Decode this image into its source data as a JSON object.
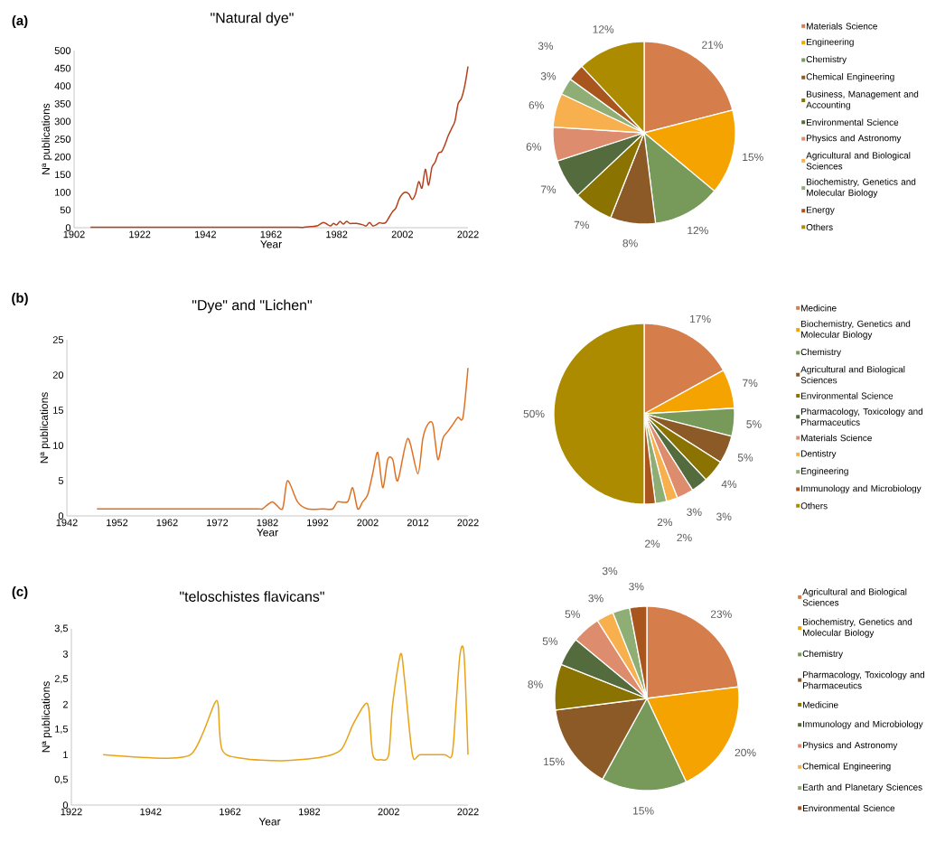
{
  "chart_data": [
    {
      "type": "line",
      "title": "\"Natural dye\"",
      "xlabel": "Year",
      "ylabel": "Nª publications",
      "annotations": [
        "(a)"
      ],
      "color": "#b5401b",
      "x": [
        1907,
        1920,
        1940,
        1955,
        1970,
        1972,
        1974,
        1976,
        1978,
        1980,
        1981,
        1982,
        1983,
        1984,
        1985,
        1986,
        1987,
        1988,
        1990,
        1991,
        1992,
        1993,
        1994,
        1995,
        1996,
        1997,
        1998,
        1999,
        2000,
        2001,
        2002,
        2003,
        2004,
        2005,
        2006,
        2007,
        2008,
        2009,
        2010,
        2011,
        2012,
        2013,
        2014,
        2015,
        2016,
        2017,
        2018,
        2019,
        2020,
        2021,
        2022
      ],
      "values": [
        1,
        1,
        1,
        1,
        1,
        1,
        3,
        5,
        15,
        5,
        12,
        8,
        18,
        10,
        18,
        12,
        12,
        12,
        8,
        5,
        15,
        5,
        8,
        14,
        12,
        15,
        30,
        45,
        55,
        80,
        95,
        100,
        95,
        80,
        95,
        130,
        112,
        165,
        120,
        170,
        185,
        210,
        215,
        235,
        260,
        280,
        300,
        350,
        365,
        400,
        455
      ],
      "xlim": [
        1902,
        2022
      ],
      "xticks": [
        1902,
        1922,
        1942,
        1962,
        1982,
        2002,
        2022
      ],
      "ylim": [
        0,
        500
      ],
      "yticks": [
        0,
        50,
        100,
        150,
        200,
        250,
        300,
        350,
        400,
        450,
        500
      ]
    },
    {
      "type": "pie",
      "legend": "right",
      "categories": [
        "Materials Science",
        "Engineering",
        "Chemistry",
        "Chemical Engineering",
        "Business, Management and Accounting",
        "Environmental Science",
        "Physics and Astronomy",
        "Agricultural and Biological Sciences",
        "Biochemistry, Genetics and Molecular Biology",
        "Energy",
        "Others"
      ],
      "values": [
        21,
        15,
        12,
        8,
        7,
        7,
        6,
        6,
        3,
        3,
        12
      ],
      "value_labels": [
        "21%",
        "15%",
        "12%",
        "8%",
        "7%",
        "7%",
        "6%",
        "6%",
        "3%",
        "3%",
        "12%"
      ],
      "colors": [
        "#d57d4b",
        "#f5a300",
        "#77995a",
        "#8b5a26",
        "#8a7300",
        "#546b3e",
        "#de8c6e",
        "#f8b04e",
        "#8fae76",
        "#a9561e",
        "#ac8b00"
      ]
    },
    {
      "type": "line",
      "title": "\"Dye\" and \"Lichen\"",
      "xlabel": "Year",
      "ylabel": "Nª publications",
      "annotations": [
        "(b)"
      ],
      "color": "#e07020",
      "x": [
        1948,
        1960,
        1970,
        1980,
        1981,
        1983,
        1985,
        1986,
        1988,
        1990,
        1993,
        1995,
        1996,
        1998,
        1999,
        2000,
        2001,
        2002,
        2003,
        2004,
        2005,
        2006,
        2007,
        2008,
        2010,
        2012,
        2013,
        2014,
        2015,
        2016,
        2017,
        2018,
        2019,
        2020,
        2021,
        2022
      ],
      "values": [
        1,
        1,
        1,
        1,
        1,
        2,
        1,
        5,
        2,
        1,
        1,
        1,
        2,
        2,
        4,
        1,
        2,
        3,
        6,
        9,
        4,
        8,
        8,
        5,
        11,
        6,
        11,
        13,
        13,
        8,
        11,
        12,
        13,
        14,
        14,
        21
      ],
      "xlim": [
        1942,
        2022
      ],
      "xticks": [
        1942,
        1952,
        1962,
        1972,
        1982,
        1992,
        2002,
        2012,
        2022
      ],
      "ylim": [
        0,
        25
      ],
      "yticks": [
        0,
        5,
        10,
        15,
        20,
        25
      ]
    },
    {
      "type": "pie",
      "legend": "right",
      "categories": [
        "Medicine",
        "Biochemistry, Genetics and Molecular Biology",
        "Chemistry",
        "Agricultural and Biological Sciences",
        "Environmental Science",
        "Pharmacology, Toxicology and Pharmaceutics",
        "Materials Science",
        "Dentistry",
        "Engineering",
        "Immunology and Microbiology",
        "Others"
      ],
      "values": [
        17,
        7,
        5,
        5,
        4,
        3,
        3,
        2,
        2,
        2,
        50
      ],
      "value_labels": [
        "17%",
        "7%",
        "5%",
        "5%",
        "4%",
        "3%",
        "3%",
        "2%",
        "2%",
        "2%",
        "50%"
      ],
      "colors": [
        "#d57d4b",
        "#f5a300",
        "#77995a",
        "#8b5a26",
        "#8a7300",
        "#546b3e",
        "#de8c6e",
        "#f8b04e",
        "#8fae76",
        "#a9561e",
        "#ac8b00"
      ]
    },
    {
      "type": "line",
      "title": "\"teloschistes flavicans\"",
      "xlabel": "Year",
      "ylabel": "Nª publications",
      "annotations": [
        "(c)"
      ],
      "color": "#e8a317",
      "x": [
        1930,
        1945,
        1952,
        1955,
        1958,
        1959,
        1960,
        1965,
        1975,
        1985,
        1990,
        1993,
        1996,
        1997,
        1998,
        2000,
        2002,
        2003,
        2005,
        2006,
        2008,
        2010,
        2016,
        2018,
        2019,
        2020,
        2021,
        2022
      ],
      "values": [
        1,
        0.93,
        1,
        1.4,
        2,
        2,
        1.1,
        0.93,
        0.88,
        0.95,
        1.1,
        1.6,
        2,
        1.9,
        1,
        0.9,
        1,
        2,
        3,
        2.5,
        1,
        1,
        1,
        1,
        2,
        3,
        3,
        1
      ],
      "xlim": [
        1922,
        2022
      ],
      "xticks": [
        1922,
        1942,
        1962,
        1982,
        2002,
        2022
      ],
      "ylim": [
        0,
        3.5
      ],
      "yticks": [
        0,
        {
          "value": 0.5,
          "label": "0,5"
        },
        1,
        {
          "value": 1.5,
          "label": "1,5"
        },
        2,
        {
          "value": 2.5,
          "label": "2,5"
        },
        3,
        {
          "value": 3.5,
          "label": "3,5"
        }
      ]
    },
    {
      "type": "pie",
      "legend": "right",
      "categories": [
        "Agricultural and Biological Sciences",
        "Biochemistry, Genetics and Molecular Biology",
        "Chemistry",
        "Pharmacology, Toxicology and Pharmaceutics",
        "Medicine",
        "Immunology and Microbiology",
        "Physics and Astronomy",
        "Chemical Engineering",
        "Earth and Planetary Sciences",
        "Environmental Science"
      ],
      "values": [
        23,
        20,
        15,
        15,
        8,
        5,
        5,
        3,
        3,
        3
      ],
      "value_labels": [
        "23%",
        "20%",
        "15%",
        "15%",
        "8%",
        "5%",
        "5%",
        "3%",
        "3%",
        "3%"
      ],
      "colors": [
        "#d57d4b",
        "#f5a300",
        "#77995a",
        "#8b5a26",
        "#8a7300",
        "#546b3e",
        "#de8c6e",
        "#f8b04e",
        "#8fae76",
        "#a9561e"
      ]
    }
  ]
}
